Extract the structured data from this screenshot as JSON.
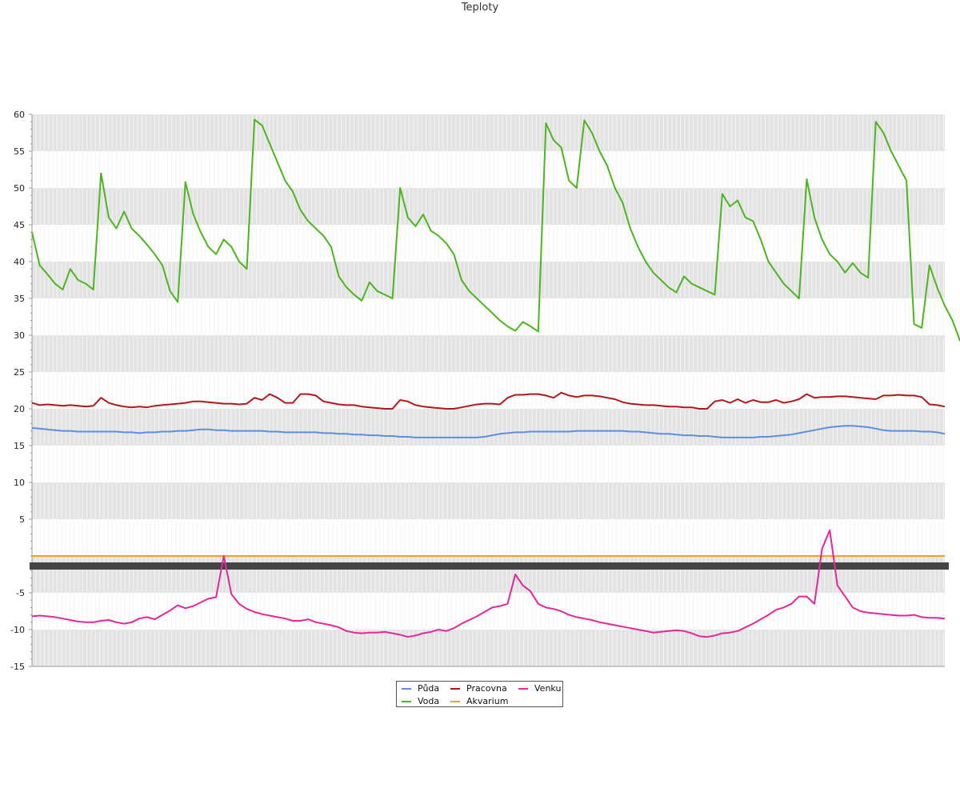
{
  "chart_data": {
    "type": "line",
    "title": "Teploty",
    "ylim": [
      -15,
      60
    ],
    "yticks": [
      60,
      55,
      50,
      45,
      40,
      35,
      30,
      25,
      20,
      15,
      10,
      5,
      -5,
      -10,
      -15
    ],
    "x_points": 120,
    "grid": true,
    "legend_position": "bottom-center",
    "colors": {
      "background_band": "#e3e3e3",
      "grid_line": "#f4f4f4",
      "axis": "#999999",
      "zero_axis": "#444444"
    },
    "series": [
      {
        "name": "Půda",
        "color": "#5b8fe0",
        "values": [
          17.4,
          17.3,
          17.2,
          17.1,
          17.0,
          17.0,
          16.9,
          16.9,
          16.9,
          16.9,
          16.9,
          16.9,
          16.8,
          16.8,
          16.7,
          16.8,
          16.8,
          16.9,
          16.9,
          17.0,
          17.0,
          17.1,
          17.2,
          17.2,
          17.1,
          17.1,
          17.0,
          17.0,
          17.0,
          17.0,
          17.0,
          16.9,
          16.9,
          16.8,
          16.8,
          16.8,
          16.8,
          16.8,
          16.7,
          16.7,
          16.6,
          16.6,
          16.5,
          16.5,
          16.4,
          16.4,
          16.3,
          16.3,
          16.2,
          16.2,
          16.1,
          16.1,
          16.1,
          16.1,
          16.1,
          16.1,
          16.1,
          16.1,
          16.1,
          16.2,
          16.4,
          16.6,
          16.7,
          16.8,
          16.8,
          16.9,
          16.9,
          16.9,
          16.9,
          16.9,
          16.9,
          17.0,
          17.0,
          17.0,
          17.0,
          17.0,
          17.0,
          17.0,
          16.9,
          16.9,
          16.8,
          16.7,
          16.6,
          16.6,
          16.5,
          16.4,
          16.4,
          16.3,
          16.3,
          16.2,
          16.1,
          16.1,
          16.1,
          16.1,
          16.1,
          16.2,
          16.2,
          16.3,
          16.4,
          16.5,
          16.7,
          16.9,
          17.1,
          17.3,
          17.5,
          17.6,
          17.7,
          17.7,
          17.6,
          17.5,
          17.3,
          17.1,
          17.0,
          17.0,
          17.0,
          17.0,
          16.9,
          16.9,
          16.8,
          16.6
        ]
      },
      {
        "name": "Voda",
        "color": "#4cb520",
        "values": [
          44.0,
          39.5,
          38.3,
          37.0,
          36.2,
          39.0,
          37.5,
          37.0,
          36.2,
          52.0,
          46.0,
          44.5,
          46.8,
          44.5,
          43.5,
          42.3,
          41.0,
          39.5,
          36.0,
          34.5,
          50.8,
          46.5,
          44.0,
          42.0,
          41.0,
          43.0,
          42.0,
          40.0,
          39.0,
          59.3,
          58.5,
          56.0,
          53.5,
          51.0,
          49.5,
          47.0,
          45.5,
          44.5,
          43.5,
          42.0,
          38.0,
          36.5,
          35.5,
          34.7,
          37.2,
          36.0,
          35.5,
          35.0,
          50.0,
          46.0,
          44.8,
          46.4,
          44.2,
          43.5,
          42.5,
          41.0,
          37.5,
          36.0,
          35.0,
          34.0,
          33.0,
          32.0,
          31.2,
          30.6,
          31.8,
          31.2,
          30.5,
          58.8,
          56.5,
          55.5,
          51.0,
          50.0,
          59.2,
          57.5,
          55.0,
          53.0,
          50.0,
          48.0,
          44.5,
          42.0,
          40.0,
          38.5,
          37.5,
          36.5,
          35.8,
          38.0,
          37.0,
          36.5,
          36.0,
          35.5,
          49.2,
          47.5,
          48.3,
          46.0,
          45.5,
          43.0,
          40.0,
          38.5,
          37.0,
          36.0,
          35.0,
          51.2,
          46.0,
          43.0,
          41.0,
          40.0,
          38.5,
          39.8,
          38.5,
          37.8,
          59.0,
          57.5,
          55.0,
          53.0,
          51.0,
          31.5,
          31.0,
          39.5,
          36.5,
          34.0,
          32.0,
          29.2
        ]
      },
      {
        "name": "Pracovna",
        "color": "#b0191c",
        "values": [
          20.8,
          20.5,
          20.6,
          20.5,
          20.4,
          20.5,
          20.4,
          20.3,
          20.4,
          21.5,
          20.8,
          20.5,
          20.3,
          20.2,
          20.3,
          20.2,
          20.4,
          20.5,
          20.6,
          20.7,
          20.8,
          21.0,
          21.0,
          20.9,
          20.8,
          20.7,
          20.7,
          20.6,
          20.7,
          21.5,
          21.2,
          22.0,
          21.5,
          20.8,
          20.8,
          22.0,
          22.0,
          21.8,
          21.0,
          20.8,
          20.6,
          20.5,
          20.5,
          20.3,
          20.2,
          20.1,
          20.0,
          20.0,
          21.2,
          21.0,
          20.5,
          20.3,
          20.2,
          20.1,
          20.0,
          20.0,
          20.2,
          20.4,
          20.6,
          20.7,
          20.7,
          20.6,
          21.5,
          21.9,
          21.9,
          22.0,
          22.0,
          21.8,
          21.5,
          22.2,
          21.8,
          21.6,
          21.8,
          21.8,
          21.7,
          21.5,
          21.3,
          20.9,
          20.7,
          20.6,
          20.5,
          20.5,
          20.4,
          20.3,
          20.3,
          20.2,
          20.2,
          20.0,
          20.0,
          21.0,
          21.2,
          20.8,
          21.3,
          20.8,
          21.2,
          20.9,
          20.9,
          21.2,
          20.8,
          21.0,
          21.3,
          22.0,
          21.5,
          21.6,
          21.6,
          21.7,
          21.7,
          21.6,
          21.5,
          21.4,
          21.3,
          21.8,
          21.8,
          21.9,
          21.8,
          21.8,
          21.6,
          20.6,
          20.5,
          20.3
        ]
      },
      {
        "name": "Akvarium",
        "color": "#e8a32a",
        "values": [
          0,
          0,
          0,
          0,
          0,
          0,
          0,
          0,
          0,
          0,
          0,
          0,
          0,
          0,
          0,
          0,
          0,
          0,
          0,
          0,
          0,
          0,
          0,
          0,
          0,
          0,
          0,
          0,
          0,
          0,
          0,
          0,
          0,
          0,
          0,
          0,
          0,
          0,
          0,
          0,
          0,
          0,
          0,
          0,
          0,
          0,
          0,
          0,
          0,
          0,
          0,
          0,
          0,
          0,
          0,
          0,
          0,
          0,
          0,
          0,
          0,
          0,
          0,
          0,
          0,
          0,
          0,
          0,
          0,
          0,
          0,
          0,
          0,
          0,
          0,
          0,
          0,
          0,
          0,
          0,
          0,
          0,
          0,
          0,
          0,
          0,
          0,
          0,
          0,
          0,
          0,
          0,
          0,
          0,
          0,
          0,
          0,
          0,
          0,
          0,
          0,
          0,
          0,
          0,
          0,
          0,
          0,
          0,
          0,
          0,
          0,
          0,
          0,
          0,
          0,
          0,
          0,
          0,
          0,
          0
        ]
      },
      {
        "name": "Venku",
        "color": "#e5279a",
        "values": [
          -8.2,
          -8.1,
          -8.2,
          -8.3,
          -8.5,
          -8.7,
          -8.9,
          -9.0,
          -9.0,
          -8.8,
          -8.7,
          -9.0,
          -9.2,
          -9.0,
          -8.5,
          -8.3,
          -8.6,
          -8.0,
          -7.4,
          -6.7,
          -7.1,
          -6.8,
          -6.3,
          -5.8,
          -5.6,
          0.0,
          -5.2,
          -6.5,
          -7.2,
          -7.6,
          -7.9,
          -8.1,
          -8.3,
          -8.5,
          -8.8,
          -8.8,
          -8.6,
          -9.0,
          -9.2,
          -9.4,
          -9.7,
          -10.2,
          -10.4,
          -10.5,
          -10.4,
          -10.4,
          -10.3,
          -10.5,
          -10.7,
          -11.0,
          -10.8,
          -10.5,
          -10.3,
          -10.0,
          -10.2,
          -9.8,
          -9.2,
          -8.7,
          -8.2,
          -7.6,
          -7.0,
          -6.8,
          -6.5,
          -2.5,
          -4.0,
          -4.8,
          -6.5,
          -7.0,
          -7.2,
          -7.5,
          -8.0,
          -8.3,
          -8.5,
          -8.7,
          -9.0,
          -9.2,
          -9.4,
          -9.6,
          -9.8,
          -10.0,
          -10.2,
          -10.4,
          -10.3,
          -10.2,
          -10.1,
          -10.2,
          -10.5,
          -10.9,
          -11.0,
          -10.8,
          -10.5,
          -10.4,
          -10.2,
          -9.7,
          -9.2,
          -8.6,
          -8.0,
          -7.3,
          -7.0,
          -6.5,
          -5.5,
          -5.5,
          -6.5,
          1.0,
          3.5,
          -4.0,
          -5.5,
          -7.0,
          -7.5,
          -7.7,
          -7.8,
          -7.9,
          -8.0,
          -8.1,
          -8.1,
          -8.0,
          -8.3,
          -8.4,
          -8.4,
          -8.5
        ]
      }
    ]
  }
}
